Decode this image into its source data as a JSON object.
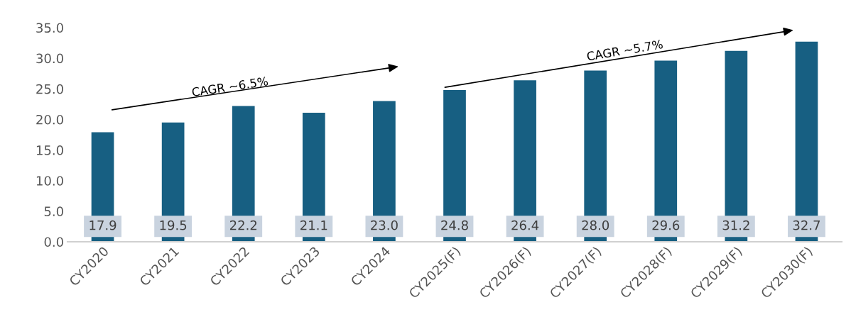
{
  "chart_data": {
    "type": "bar",
    "categories": [
      "CY2020",
      "CY2021",
      "CY2022",
      "CY2023",
      "CY2024",
      "CY2025(F)",
      "CY2026(F)",
      "CY2027(F)",
      "CY2028(F)",
      "CY2029(F)",
      "CY2030(F)"
    ],
    "values": [
      17.9,
      19.5,
      22.2,
      21.1,
      23.0,
      24.8,
      26.4,
      28.0,
      29.6,
      31.2,
      32.7
    ],
    "color": "#175f82",
    "ylim": [
      0,
      35
    ],
    "yticks": [
      {
        "value": 0,
        "label": "0.0"
      },
      {
        "value": 5,
        "label": "5.0"
      },
      {
        "value": 10,
        "label": "10.0"
      },
      {
        "value": 15,
        "label": "15.0"
      },
      {
        "value": 20,
        "label": "20.0"
      },
      {
        "value": 25,
        "label": "25.0"
      },
      {
        "value": 30,
        "label": "30.0"
      },
      {
        "value": 35,
        "label": "35.0"
      }
    ],
    "value_labels": [
      "17.9",
      "19.5",
      "22.2",
      "21.1",
      "23.0",
      "24.8",
      "26.4",
      "28.0",
      "29.6",
      "31.2",
      "32.7"
    ],
    "grid": false,
    "legend": false,
    "annotations": [
      "CAGR ~6.5%",
      "CAGR ~5.7%"
    ]
  }
}
